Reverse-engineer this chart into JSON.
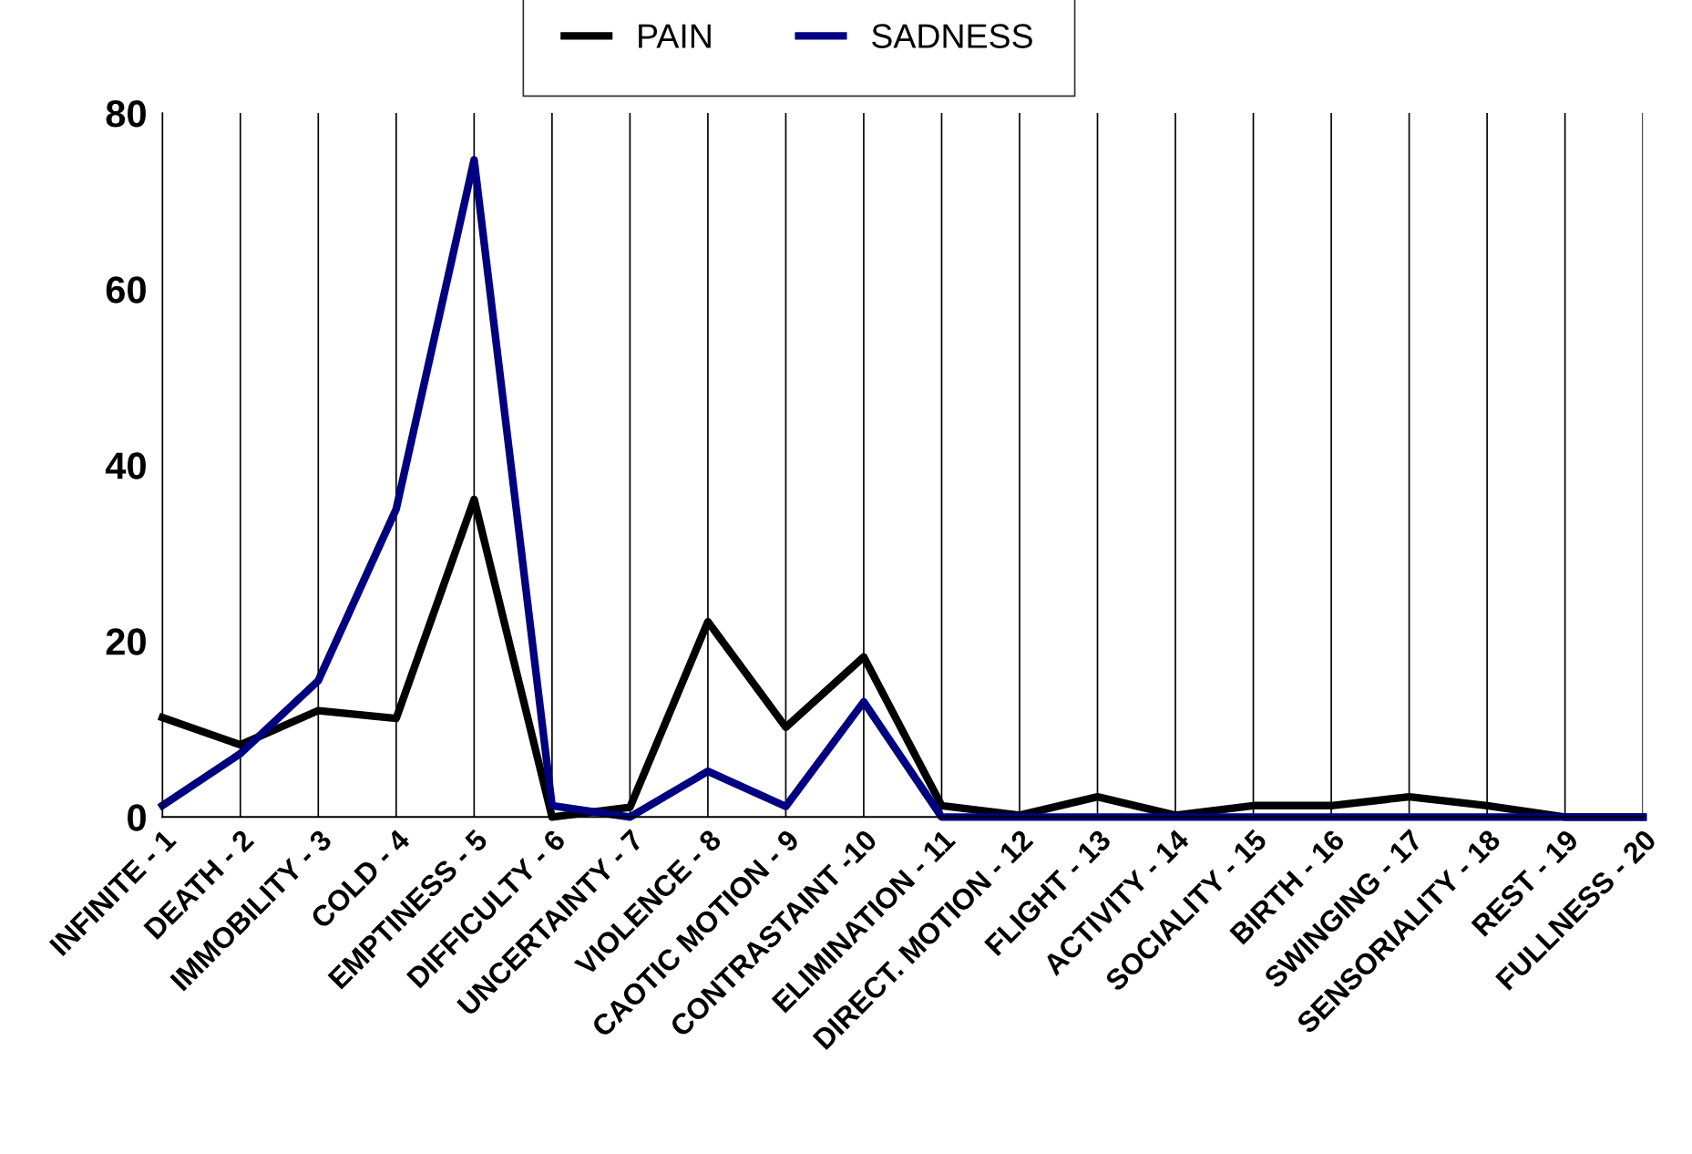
{
  "chart_data": {
    "type": "line",
    "categories": [
      "INFINITE - 1",
      "DEATH - 2",
      "IMMOBILITY - 3",
      "COLD - 4",
      "EMPTINESS - 5",
      "DIFFICULTY - 6",
      "UNCERTAINTY - 7",
      "VIOLENCE - 8",
      "CAOTIC MOTION - 9",
      "CONTRASTAINT -10",
      "ELIMINATION - 11",
      "DIRECT. MOTION - 12",
      "FLIGHT - 13",
      "ACTIVITY - 14",
      "SOCIALITY - 15",
      "BIRTH - 16",
      "SWINGING - 17",
      "SENSORIALITY - 18",
      "REST - 19",
      "FULLNESS - 20"
    ],
    "series": [
      {
        "name": "PAIN",
        "color": "#000000",
        "values": [
          11.3,
          8.2,
          12.1,
          11.2,
          36.1,
          0,
          1.1,
          22.2,
          10.2,
          18.2,
          1.3,
          0.2,
          2.3,
          0.2,
          1.3,
          1.3,
          2.3,
          1.3,
          0,
          0
        ]
      },
      {
        "name": "SADNESS",
        "color": "#000080",
        "values": [
          1.3,
          7.2,
          15.5,
          35,
          74.7,
          1.3,
          0,
          5.2,
          1.2,
          13.1,
          0,
          0,
          0,
          0,
          0,
          0,
          0,
          0,
          0,
          0
        ]
      }
    ],
    "ylim": [
      0,
      80
    ],
    "yticks": [
      0,
      20,
      40,
      60,
      80
    ],
    "grid": "x",
    "legend": "top",
    "marker": "none",
    "line_style": "solid"
  }
}
